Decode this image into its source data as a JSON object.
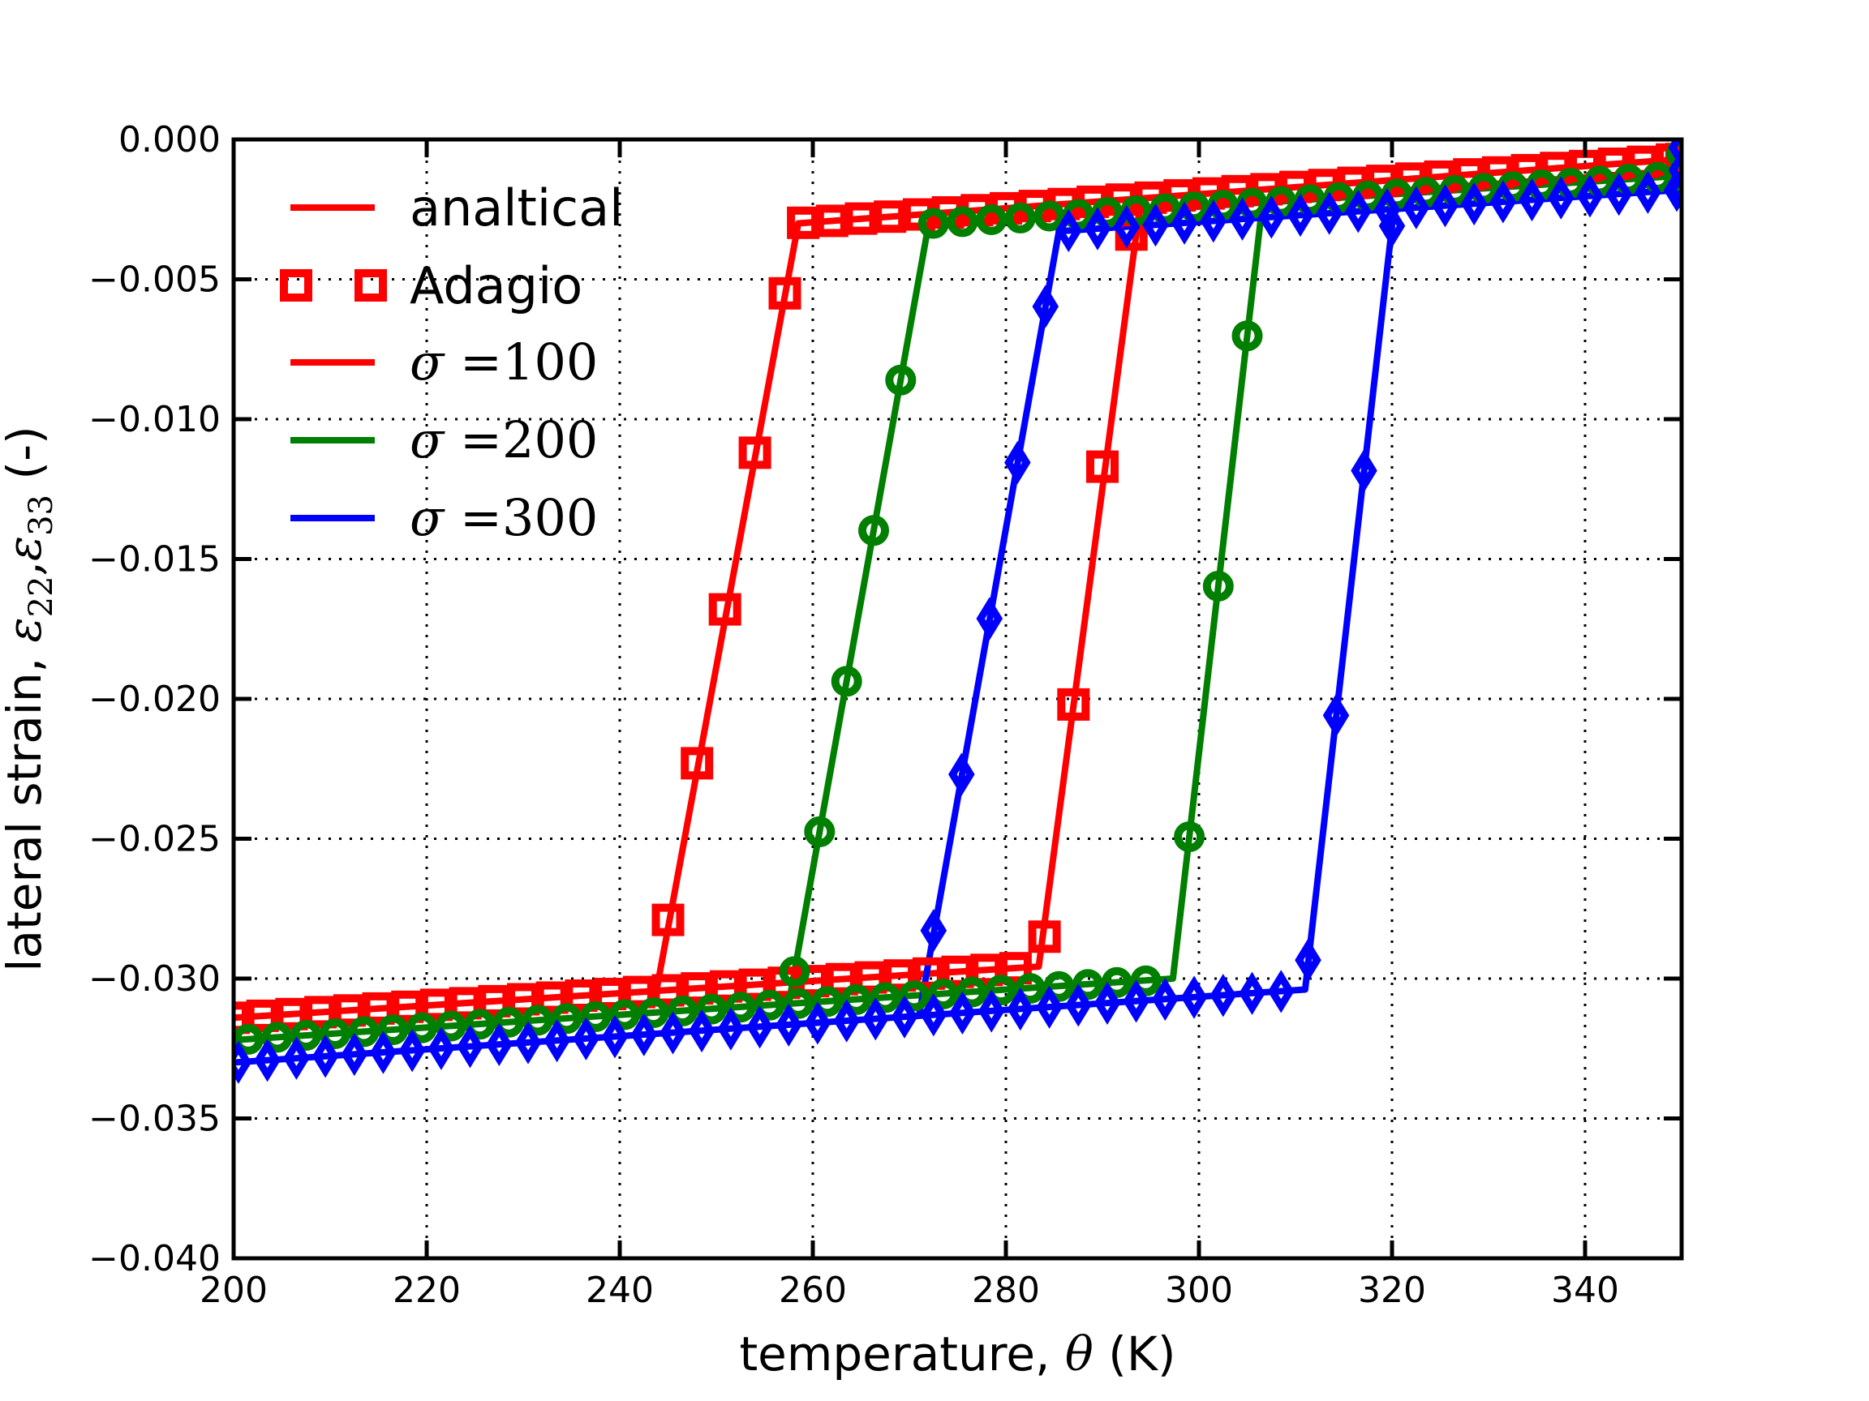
{
  "figure": {
    "bg": "#ffffff"
  },
  "chart_data": {
    "type": "line",
    "title": "",
    "xlabel": "temperature, θ (K)",
    "ylabel": "lateral strain, ε22,ε33 (-)",
    "xlabel_segments": [
      {
        "t": "temperature, ",
        "f": "sans"
      },
      {
        "t": "θ",
        "f": "mathit"
      },
      {
        "t": " (K)",
        "f": "sans"
      }
    ],
    "ylabel_segments": [
      {
        "t": "lateral strain, ",
        "f": "sans"
      },
      {
        "t": "ε",
        "f": "mathit"
      },
      {
        "t": "22",
        "f": "sub"
      },
      {
        "t": ",",
        "f": "serif"
      },
      {
        "t": "ε",
        "f": "mathit"
      },
      {
        "t": "33",
        "f": "sub"
      },
      {
        "t": " (-)",
        "f": "sans"
      }
    ],
    "xlim": [
      200,
      350
    ],
    "ylim": [
      -0.04,
      0.0
    ],
    "xticks": [
      200,
      220,
      240,
      260,
      280,
      300,
      320,
      340
    ],
    "xtick_labels": [
      "200",
      "220",
      "240",
      "260",
      "280",
      "300",
      "320",
      "340"
    ],
    "yticks": [
      0.0,
      -0.005,
      -0.01,
      -0.015,
      -0.02,
      -0.025,
      -0.03,
      -0.035,
      -0.04
    ],
    "ytick_labels": [
      "0.000",
      "−0.005",
      "−0.010",
      "−0.015",
      "−0.020",
      "−0.025",
      "−0.030",
      "−0.035",
      "−0.040"
    ],
    "grid": "dotted",
    "legend_position": "upper-left-inside",
    "legend": [
      {
        "label": "analtical",
        "math": false,
        "color": "#ff0000",
        "sample": "line"
      },
      {
        "label": "Adagio",
        "math": false,
        "color": "#ff0000",
        "sample": "squares"
      },
      {
        "label": "σ =100",
        "math": true,
        "color": "#ff0000",
        "sample": "line"
      },
      {
        "label": "σ =200",
        "math": true,
        "color": "#007f00",
        "sample": "line"
      },
      {
        "label": "σ =300",
        "math": true,
        "color": "#0000ff",
        "sample": "line"
      }
    ],
    "series": [
      {
        "id": "analytical-sigma-100",
        "name": "analtical σ=100",
        "kind": "line",
        "color": "#ff0000",
        "loop": [
          [
            350,
            -0.0002
          ],
          [
            350,
            -0.0007
          ],
          [
            258.5,
            -0.003
          ],
          [
            243.8,
            -0.03044
          ],
          [
            200,
            -0.0314
          ],
          [
            283.4,
            -0.02957
          ],
          [
            294,
            -0.00211
          ],
          [
            350,
            -0.0007
          ]
        ]
      },
      {
        "id": "analytical-sigma-200",
        "name": "analtical σ=200",
        "kind": "line",
        "color": "#007f00",
        "loop": [
          [
            350,
            -0.0004
          ],
          [
            350,
            -0.0013
          ],
          [
            272,
            -0.00302
          ],
          [
            257.5,
            -0.0309
          ],
          [
            200,
            -0.0322
          ],
          [
            297.3,
            -0.03
          ],
          [
            306.6,
            -0.00225
          ],
          [
            350,
            -0.0013
          ]
        ]
      },
      {
        "id": "analytical-sigma-300",
        "name": "analtical σ=300",
        "kind": "line",
        "color": "#0000ff",
        "loop": [
          [
            350,
            -0.0002
          ],
          [
            350,
            -0.0018
          ],
          [
            285.5,
            -0.00328
          ],
          [
            271,
            -0.03133
          ],
          [
            200,
            -0.033
          ],
          [
            311,
            -0.03039
          ],
          [
            320.2,
            -0.00249
          ],
          [
            350,
            -0.0018
          ]
        ]
      },
      {
        "id": "adagio-sigma-100",
        "name": "Adagio σ=100",
        "kind": "markers",
        "marker": "square",
        "color": "#ff0000",
        "points": [
          [
            200,
            -0.0314
          ],
          [
            203,
            -0.03133
          ],
          [
            206,
            -0.03127
          ],
          [
            209,
            -0.0312
          ],
          [
            212,
            -0.03114
          ],
          [
            215,
            -0.03107
          ],
          [
            218,
            -0.03101
          ],
          [
            221,
            -0.03094
          ],
          [
            224,
            -0.03088
          ],
          [
            227,
            -0.03081
          ],
          [
            230,
            -0.03074
          ],
          [
            233,
            -0.03068
          ],
          [
            236,
            -0.03061
          ],
          [
            239,
            -0.03055
          ],
          [
            242,
            -0.03048
          ],
          [
            245,
            -0.03042
          ],
          [
            248,
            -0.03035
          ],
          [
            251,
            -0.03028
          ],
          [
            254,
            -0.03022
          ],
          [
            257,
            -0.03015
          ],
          [
            260,
            -0.03009
          ],
          [
            263,
            -0.03002
          ],
          [
            266,
            -0.02996
          ],
          [
            269,
            -0.02989
          ],
          [
            272,
            -0.02982
          ],
          [
            275,
            -0.02976
          ],
          [
            278,
            -0.02969
          ],
          [
            281,
            -0.02963
          ],
          [
            257.1,
            -0.0055
          ],
          [
            254,
            -0.0112
          ],
          [
            250.9,
            -0.0168
          ],
          [
            248,
            -0.0223
          ],
          [
            245,
            -0.0279
          ],
          [
            284,
            -0.0285
          ],
          [
            287,
            -0.0202
          ],
          [
            290,
            -0.0117
          ],
          [
            293,
            -0.0034
          ],
          [
            259,
            -0.00298
          ],
          [
            262,
            -0.00291
          ],
          [
            265,
            -0.00283
          ],
          [
            268,
            -0.00276
          ],
          [
            271,
            -0.00268
          ],
          [
            274,
            -0.00261
          ],
          [
            277,
            -0.00253
          ],
          [
            280,
            -0.00246
          ],
          [
            283,
            -0.00238
          ],
          [
            286,
            -0.00231
          ],
          [
            289,
            -0.00223
          ],
          [
            292,
            -0.00215
          ],
          [
            295,
            -0.00208
          ],
          [
            298,
            -0.002
          ],
          [
            301,
            -0.00193
          ],
          [
            304,
            -0.00185
          ],
          [
            307,
            -0.00178
          ],
          [
            310,
            -0.0017
          ],
          [
            313,
            -0.00163
          ],
          [
            316,
            -0.00155
          ],
          [
            319,
            -0.00148
          ],
          [
            322,
            -0.0014
          ],
          [
            325,
            -0.00133
          ],
          [
            328,
            -0.00125
          ],
          [
            331,
            -0.00118
          ],
          [
            334,
            -0.0011
          ],
          [
            337,
            -0.00102
          ],
          [
            340,
            -0.00095
          ],
          [
            343,
            -0.00087
          ],
          [
            346,
            -0.0008
          ],
          [
            349,
            -0.00072
          ],
          [
            350,
            -0.0007
          ]
        ]
      },
      {
        "id": "adagio-sigma-200",
        "name": "Adagio σ=200",
        "kind": "markers",
        "marker": "circle",
        "color": "#007f00",
        "points": [
          [
            201.5,
            -0.03217
          ],
          [
            204.5,
            -0.0321
          ],
          [
            207.5,
            -0.03203
          ],
          [
            210.5,
            -0.03197
          ],
          [
            213.5,
            -0.0319
          ],
          [
            216.5,
            -0.03183
          ],
          [
            219.5,
            -0.03176
          ],
          [
            222.5,
            -0.0317
          ],
          [
            225.5,
            -0.03163
          ],
          [
            228.5,
            -0.03156
          ],
          [
            231.5,
            -0.03149
          ],
          [
            234.5,
            -0.03143
          ],
          [
            237.5,
            -0.03136
          ],
          [
            240.5,
            -0.03129
          ],
          [
            243.5,
            -0.03122
          ],
          [
            246.5,
            -0.03116
          ],
          [
            249.5,
            -0.03109
          ],
          [
            252.5,
            -0.03102
          ],
          [
            255.5,
            -0.03095
          ],
          [
            258.5,
            -0.03089
          ],
          [
            261.5,
            -0.03082
          ],
          [
            264.5,
            -0.03075
          ],
          [
            267.5,
            -0.03068
          ],
          [
            270.5,
            -0.03062
          ],
          [
            273.5,
            -0.03055
          ],
          [
            276.5,
            -0.03048
          ],
          [
            279.5,
            -0.03041
          ],
          [
            282.5,
            -0.03035
          ],
          [
            285.5,
            -0.03028
          ],
          [
            288.5,
            -0.03021
          ],
          [
            291.5,
            -0.03014
          ],
          [
            294.5,
            -0.03008
          ],
          [
            269.1,
            -0.0086
          ],
          [
            266.3,
            -0.01398
          ],
          [
            263.5,
            -0.01937
          ],
          [
            260.7,
            -0.02475
          ],
          [
            258.1,
            -0.02975
          ],
          [
            299,
            -0.02493
          ],
          [
            302,
            -0.01597
          ],
          [
            305,
            -0.00702
          ],
          [
            272.5,
            -0.003
          ],
          [
            275.5,
            -0.00294
          ],
          [
            278.5,
            -0.00287
          ],
          [
            281.5,
            -0.00281
          ],
          [
            284.5,
            -0.00274
          ],
          [
            287.5,
            -0.00268
          ],
          [
            290.5,
            -0.00261
          ],
          [
            293.5,
            -0.00255
          ],
          [
            296.5,
            -0.00248
          ],
          [
            299.5,
            -0.00241
          ],
          [
            302.5,
            -0.00235
          ],
          [
            305.5,
            -0.00228
          ],
          [
            308.5,
            -0.00222
          ],
          [
            311.5,
            -0.00215
          ],
          [
            314.5,
            -0.00208
          ],
          [
            317.5,
            -0.00202
          ],
          [
            320.5,
            -0.00195
          ],
          [
            323.5,
            -0.00189
          ],
          [
            326.5,
            -0.00182
          ],
          [
            329.5,
            -0.00175
          ],
          [
            332.5,
            -0.00169
          ],
          [
            335.5,
            -0.00162
          ],
          [
            338.5,
            -0.00156
          ],
          [
            341.5,
            -0.00149
          ],
          [
            344.5,
            -0.00142
          ],
          [
            347.5,
            -0.00136
          ],
          [
            350,
            -0.0013
          ],
          [
            350,
            -0.0005
          ]
        ]
      },
      {
        "id": "adagio-sigma-300",
        "name": "Adagio σ=300",
        "kind": "markers",
        "marker": "thin-diamond",
        "color": "#0000ff",
        "points": [
          [
            200.5,
            -0.03299
          ],
          [
            203.5,
            -0.03292
          ],
          [
            206.5,
            -0.03285
          ],
          [
            209.5,
            -0.03278
          ],
          [
            212.5,
            -0.03271
          ],
          [
            215.5,
            -0.03264
          ],
          [
            218.5,
            -0.03257
          ],
          [
            221.5,
            -0.0325
          ],
          [
            224.5,
            -0.03243
          ],
          [
            227.5,
            -0.03236
          ],
          [
            230.5,
            -0.03229
          ],
          [
            233.5,
            -0.03222
          ],
          [
            236.5,
            -0.03215
          ],
          [
            239.5,
            -0.03208
          ],
          [
            242.5,
            -0.03201
          ],
          [
            245.5,
            -0.03194
          ],
          [
            248.5,
            -0.03187
          ],
          [
            251.5,
            -0.0318
          ],
          [
            254.5,
            -0.03173
          ],
          [
            257.5,
            -0.03166
          ],
          [
            260.5,
            -0.03159
          ],
          [
            263.5,
            -0.03151
          ],
          [
            266.5,
            -0.03144
          ],
          [
            269.5,
            -0.03137
          ],
          [
            272.5,
            -0.0313
          ],
          [
            275.5,
            -0.03123
          ],
          [
            278.5,
            -0.03116
          ],
          [
            281.5,
            -0.03109
          ],
          [
            284.5,
            -0.03102
          ],
          [
            287.5,
            -0.03095
          ],
          [
            290.5,
            -0.03088
          ],
          [
            293.5,
            -0.03081
          ],
          [
            296.5,
            -0.03074
          ],
          [
            299.5,
            -0.03067
          ],
          [
            302.5,
            -0.0306
          ],
          [
            305.5,
            -0.03053
          ],
          [
            308.5,
            -0.03046
          ],
          [
            284.1,
            -0.00597
          ],
          [
            281.2,
            -0.01155
          ],
          [
            278.3,
            -0.01713
          ],
          [
            275.4,
            -0.0227
          ],
          [
            272.5,
            -0.02828
          ],
          [
            311.3,
            -0.02934
          ],
          [
            314.2,
            -0.02059
          ],
          [
            317.1,
            -0.01184
          ],
          [
            320,
            -0.00309
          ],
          [
            286.5,
            -0.00326
          ],
          [
            289.5,
            -0.00319
          ],
          [
            292.5,
            -0.00312
          ],
          [
            295.5,
            -0.00306
          ],
          [
            298.5,
            -0.00299
          ],
          [
            301.5,
            -0.00292
          ],
          [
            304.5,
            -0.00285
          ],
          [
            307.5,
            -0.00278
          ],
          [
            310.5,
            -0.00271
          ],
          [
            313.5,
            -0.00264
          ],
          [
            316.5,
            -0.00257
          ],
          [
            319.5,
            -0.00251
          ],
          [
            322.5,
            -0.00244
          ],
          [
            325.5,
            -0.00237
          ],
          [
            328.5,
            -0.0023
          ],
          [
            331.5,
            -0.00223
          ],
          [
            334.5,
            -0.00216
          ],
          [
            337.5,
            -0.00209
          ],
          [
            340.5,
            -0.00202
          ],
          [
            343.5,
            -0.00196
          ],
          [
            346.5,
            -0.00189
          ],
          [
            349.5,
            -0.00182
          ],
          [
            350,
            -0.0003
          ],
          [
            350,
            -0.0011
          ],
          [
            350,
            -0.0018
          ]
        ]
      }
    ]
  },
  "style": {
    "axis_color": "#000000",
    "grid_color": "#000000",
    "line_width": 8,
    "marker_edge_width": 10,
    "red": "#ff0000",
    "green": "#007f00",
    "blue": "#0000ff"
  }
}
